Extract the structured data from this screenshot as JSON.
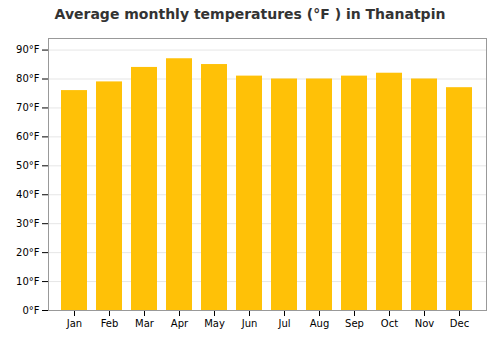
{
  "chart_data": {
    "type": "bar",
    "title": "Average monthly temperatures (°F ) in Thanatpin",
    "categories": [
      "Jan",
      "Feb",
      "Mar",
      "Apr",
      "May",
      "Jun",
      "Jul",
      "Aug",
      "Sep",
      "Oct",
      "Nov",
      "Dec"
    ],
    "values": [
      76,
      79,
      84,
      87,
      85,
      81,
      80,
      80,
      81,
      82,
      80,
      77
    ],
    "color": "#FFC107",
    "ylim": [
      0,
      94
    ],
    "yticks": [
      {
        "value": 0,
        "label": "0°F"
      },
      {
        "value": 10,
        "label": "10°F"
      },
      {
        "value": 20,
        "label": "20°F"
      },
      {
        "value": 30,
        "label": "30°F"
      },
      {
        "value": 40,
        "label": "40°F"
      },
      {
        "value": 50,
        "label": "50°F"
      },
      {
        "value": 60,
        "label": "60°F"
      },
      {
        "value": 70,
        "label": "70°F"
      },
      {
        "value": 80,
        "label": "80°F"
      },
      {
        "value": 90,
        "label": "90°F"
      }
    ],
    "grid": true
  }
}
